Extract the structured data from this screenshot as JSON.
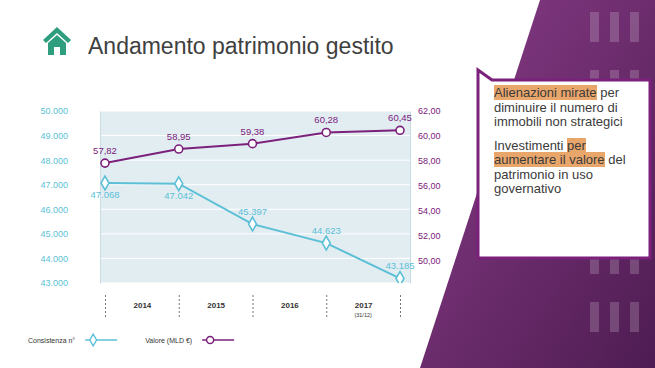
{
  "chart_data": {
    "type": "line",
    "title": "Andamento patrimonio gestito",
    "categories": [
      null,
      "2014",
      "2015",
      "2016",
      "2017"
    ],
    "annotations": [
      "(31/12)"
    ],
    "series": [
      {
        "name": "Consistenza n°",
        "color": "#5bbfd6",
        "marker": "diamond",
        "values": [
          47068,
          47042,
          45397,
          44623,
          43185
        ],
        "value_labels": [
          "47.068",
          "47.042",
          "45.397",
          "44.623",
          "43.185"
        ]
      },
      {
        "name": "Valore (MLD €)",
        "color": "#7b217c",
        "marker": "circle",
        "axis": "y2",
        "values": [
          57.82,
          58.95,
          59.38,
          60.28,
          60.45
        ],
        "value_labels": [
          "57,82",
          "58,95",
          "59,38",
          "60,28",
          "60,45"
        ]
      }
    ],
    "ylim": [
      43000,
      50000
    ],
    "yticks": [
      {
        "value": 43000,
        "label": "43.000"
      },
      {
        "value": 44000,
        "label": "44.000"
      },
      {
        "value": 45000,
        "label": "45.000"
      },
      {
        "value": 46000,
        "label": "46.000"
      },
      {
        "value": 47000,
        "label": "47.000"
      },
      {
        "value": 48000,
        "label": "48.000"
      },
      {
        "value": 49000,
        "label": "49.000"
      },
      {
        "value": 50000,
        "label": "50.000"
      }
    ],
    "y2lim": [
      48.2,
      62
    ],
    "y2ticks": [
      {
        "value": 50,
        "label": "50,00"
      },
      {
        "value": 52,
        "label": "52,00"
      },
      {
        "value": 54,
        "label": "54,00"
      },
      {
        "value": 56,
        "label": "56,00"
      },
      {
        "value": 58,
        "label": "58,00"
      },
      {
        "value": 60,
        "label": "60,00"
      },
      {
        "value": 62,
        "label": "62,00"
      }
    ],
    "grid": true,
    "data_labels": true,
    "legend": "lower left",
    "callouts": [
      {
        "highlighted": "Alienazioni mirate",
        "after": " per diminuire il numero di immobili non strategici"
      },
      {
        "before": "Investimenti ",
        "highlighted": "per aumentare il valore",
        "after": " del patrimonio in uso governativo"
      }
    ]
  }
}
